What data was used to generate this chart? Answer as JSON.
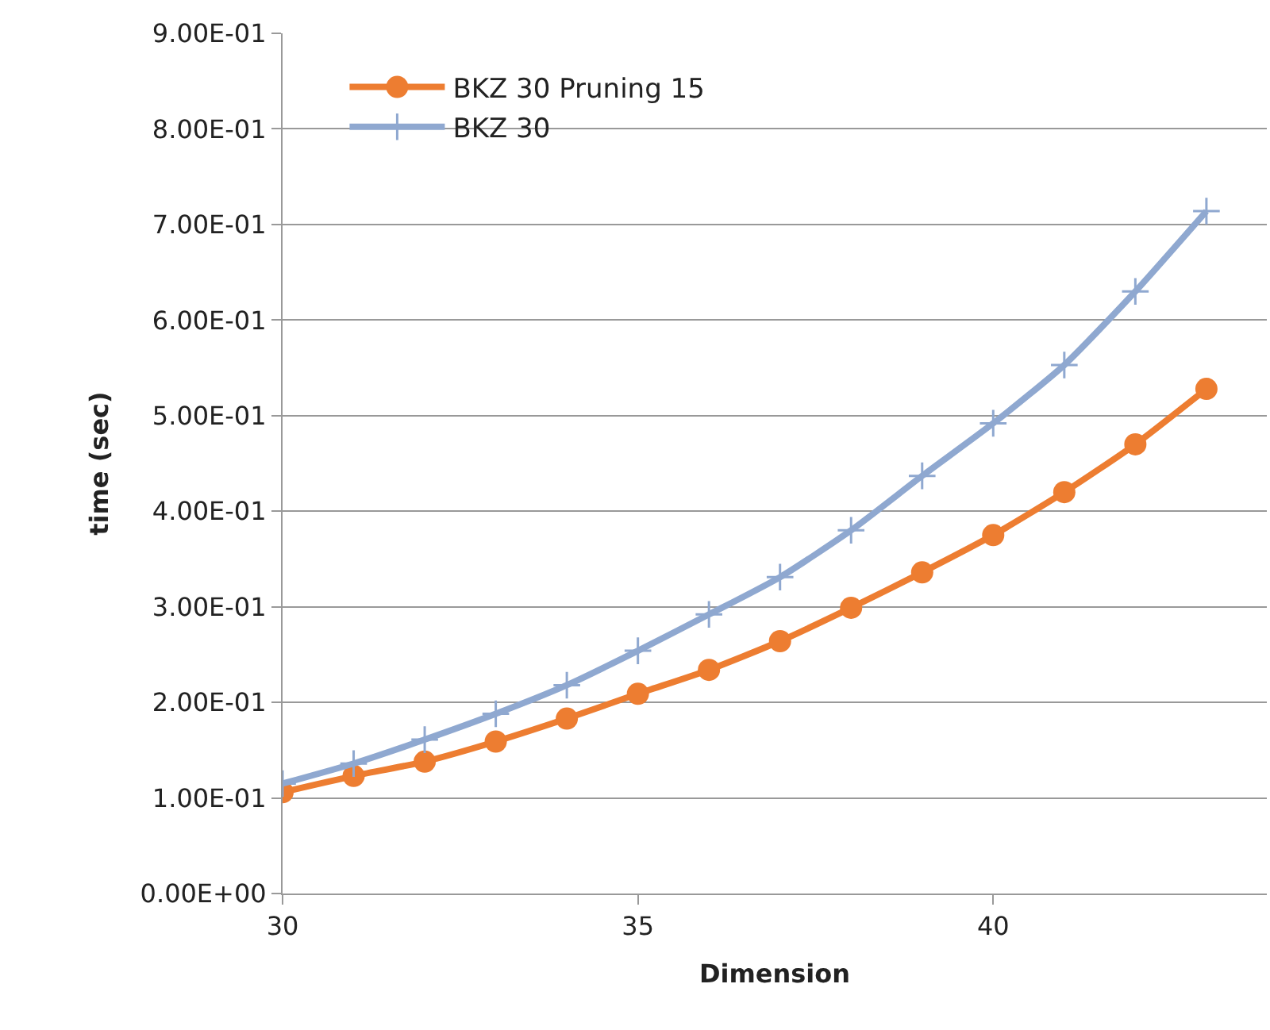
{
  "chart_data": {
    "type": "line",
    "xlabel": "Dimension",
    "ylabel": "time (sec)",
    "x": [
      30,
      31,
      32,
      33,
      34,
      35,
      36,
      37,
      38,
      39,
      40,
      41,
      42,
      43
    ],
    "series": [
      {
        "name": "BKZ 30 Pruning 15",
        "color": "#ed7d31",
        "marker": "circle",
        "values": [
          0.106,
          0.123,
          0.138,
          0.159,
          0.183,
          0.209,
          0.234,
          0.264,
          0.299,
          0.336,
          0.375,
          0.42,
          0.47,
          0.528
        ]
      },
      {
        "name": "BKZ 30",
        "color": "#8fa8d0",
        "marker": "cross",
        "values": [
          0.115,
          0.136,
          0.161,
          0.188,
          0.218,
          0.254,
          0.292,
          0.331,
          0.38,
          0.437,
          0.492,
          0.553,
          0.63,
          0.714
        ]
      }
    ],
    "xlim": [
      30,
      43.85
    ],
    "xticks": [
      30,
      35,
      40
    ],
    "ylim": [
      0,
      0.9
    ],
    "yticks": [
      {
        "value": 0,
        "label": "0.00E+00"
      },
      {
        "value": 0.1,
        "label": "1.00E-01"
      },
      {
        "value": 0.2,
        "label": "2.00E-01"
      },
      {
        "value": 0.3,
        "label": "3.00E-01"
      },
      {
        "value": 0.4,
        "label": "4.00E-01"
      },
      {
        "value": 0.5,
        "label": "5.00E-01"
      },
      {
        "value": 0.6,
        "label": "6.00E-01"
      },
      {
        "value": 0.7,
        "label": "7.00E-01"
      },
      {
        "value": 0.8,
        "label": "8.00E-01"
      },
      {
        "value": 0.9,
        "label": "9.00E-01"
      }
    ],
    "grid": "y",
    "legend": "top left",
    "line_style": "solid"
  }
}
